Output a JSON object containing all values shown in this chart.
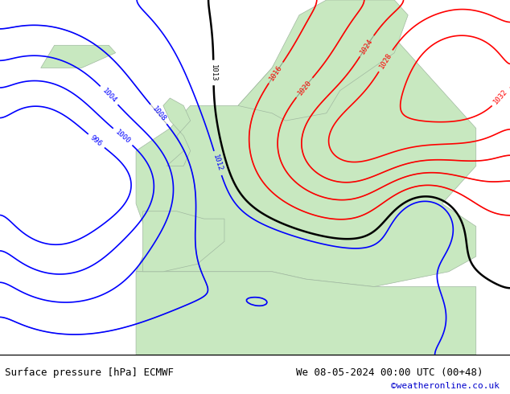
{
  "title_left": "Surface pressure [hPa] ECMWF",
  "title_right": "We 08-05-2024 00:00 UTC (00+48)",
  "copyright": "©weatheronline.co.uk",
  "footer_bg": "#e8e8e8",
  "map_bg_sea": "#c8d8e8",
  "map_bg_land": "#c8e8c0",
  "contour_interval": 4,
  "pressure_min": 996,
  "pressure_max": 1036,
  "font_size_footer": 9,
  "font_size_labels": 7
}
